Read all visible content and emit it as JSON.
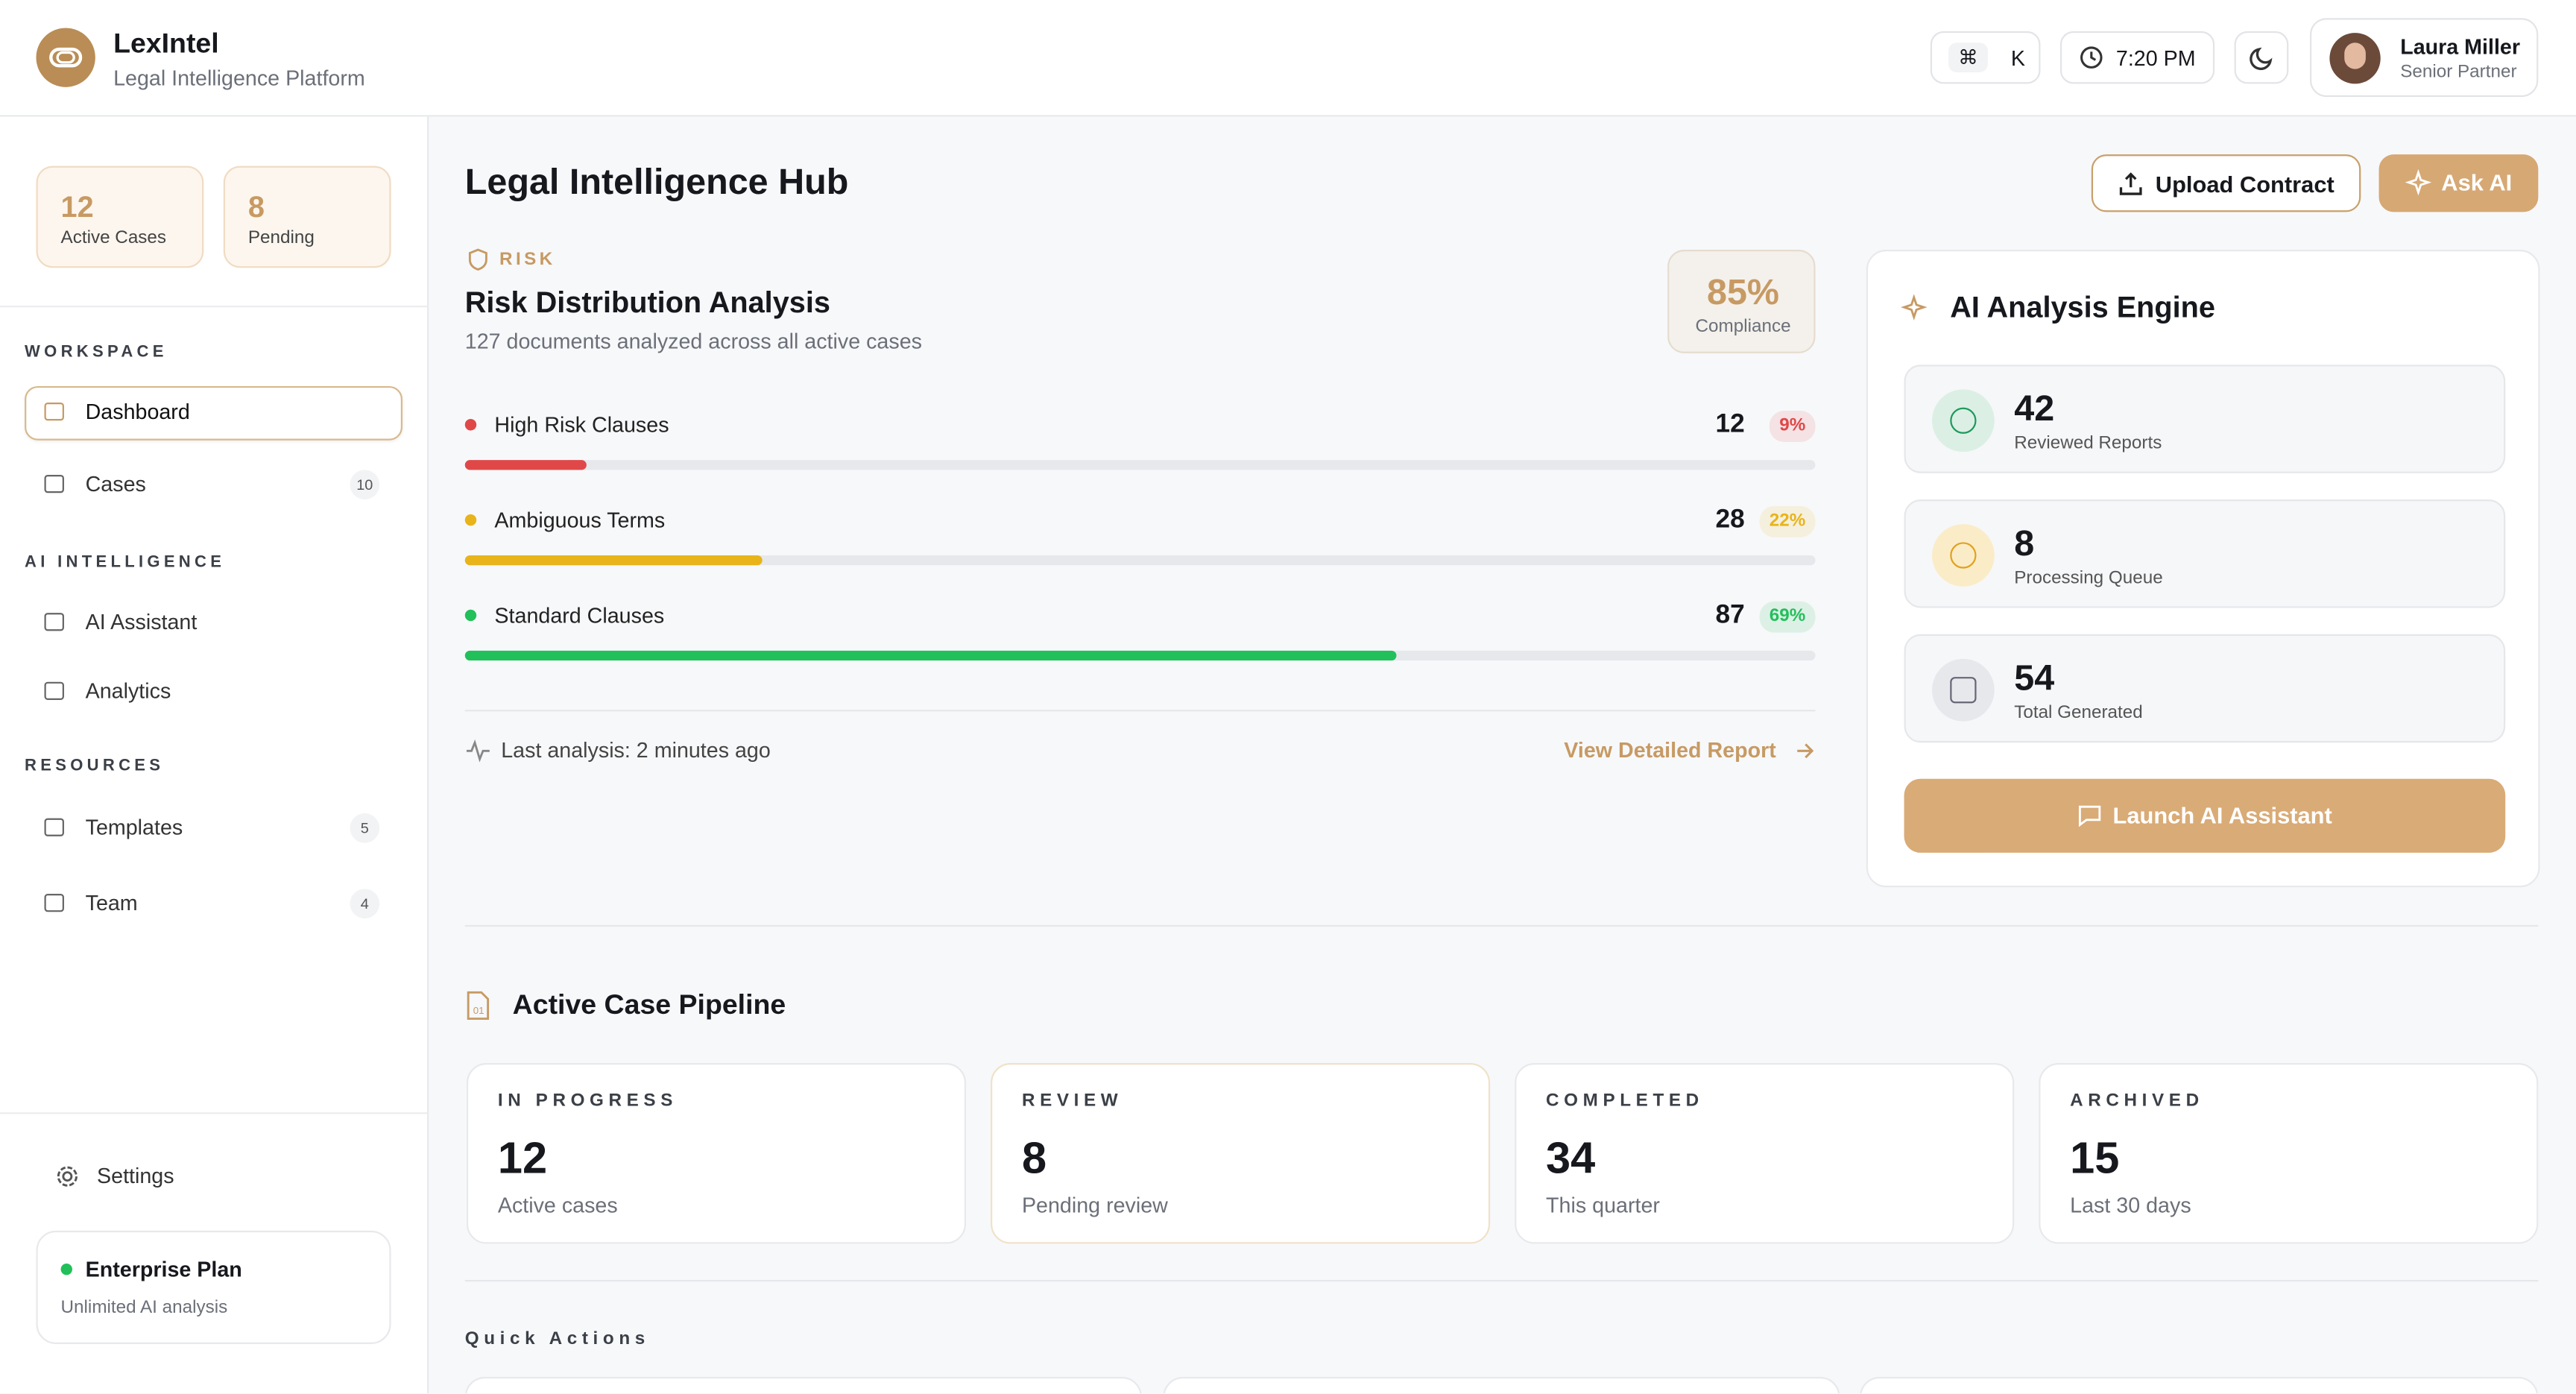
{
  "header": {
    "brand": "LexIntel",
    "tagline": "Legal Intelligence Platform",
    "shortcut": [
      "⌘",
      "K"
    ],
    "time": "7:20 PM",
    "user_name": "Laura Miller",
    "user_role": "Senior Partner"
  },
  "sidebar": {
    "stats": [
      {
        "value": 12,
        "label": "Active Cases"
      },
      {
        "value": 8,
        "label": "Pending"
      }
    ],
    "sections": [
      {
        "title": "WORKSPACE",
        "items": [
          {
            "label": "Dashboard"
          },
          {
            "label": "Cases",
            "badge": 10
          }
        ]
      },
      {
        "title": "AI INTELLIGENCE",
        "items": [
          {
            "label": "AI Assistant"
          },
          {
            "label": "Analytics"
          }
        ]
      },
      {
        "title": "RESOURCES",
        "items": [
          {
            "label": "Templates",
            "badge": 5
          },
          {
            "label": "Team",
            "badge": 4
          }
        ]
      }
    ],
    "settings": "Settings",
    "plan": {
      "name": "Enterprise Plan",
      "description": "Unlimited AI analysis"
    }
  },
  "main": {
    "title": "Legal Intelligence Hub",
    "buttons": [
      "Upload Contract",
      "Ask AI"
    ],
    "risk": {
      "eyebrow": "RISK",
      "title": "Risk Distribution Analysis",
      "subtitle": "127 documents analyzed across all active cases",
      "score": "85%",
      "score_label": "Compliance",
      "items": [
        {
          "label": "High Risk Clauses",
          "count": 12,
          "percent": "9%",
          "color": "#e04848"
        },
        {
          "label": "Ambiguous Terms",
          "count": 28,
          "percent": "22%",
          "color": "#e8b419"
        },
        {
          "label": "Standard Clauses",
          "count": 87,
          "percent": "69%",
          "color": "#22c05a"
        }
      ],
      "footer": "Last analysis: 2 minutes ago",
      "link": "View Detailed Report"
    },
    "engine": {
      "title": "AI Analysis Engine",
      "stats": [
        {
          "value": 42,
          "label": "Reviewed Reports"
        },
        {
          "value": 8,
          "label": "Processing Queue"
        },
        {
          "value": 54,
          "label": "Total Generated"
        }
      ],
      "button": "Launch AI Assistant"
    },
    "pipeline": {
      "title": "Active Case Pipeline",
      "cards": [
        {
          "label": "IN PROGRESS",
          "value": 12,
          "sub": "Active cases"
        },
        {
          "label": "REVIEW",
          "value": 8,
          "sub": "Pending review"
        },
        {
          "label": "COMPLETED",
          "value": 34,
          "sub": "This quarter"
        },
        {
          "label": "ARCHIVED",
          "value": 15,
          "sub": "Last 30 days"
        }
      ]
    },
    "quick_actions": "Quick Actions"
  }
}
